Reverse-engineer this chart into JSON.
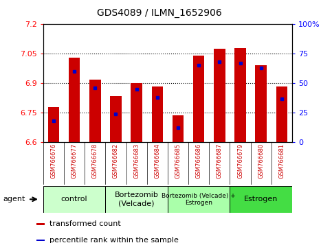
{
  "title": "GDS4089 / ILMN_1652906",
  "samples": [
    "GSM766676",
    "GSM766677",
    "GSM766678",
    "GSM766682",
    "GSM766683",
    "GSM766684",
    "GSM766685",
    "GSM766686",
    "GSM766687",
    "GSM766679",
    "GSM766680",
    "GSM766681"
  ],
  "bar_heights": [
    6.78,
    7.03,
    6.92,
    6.835,
    6.9,
    6.885,
    6.735,
    7.04,
    7.075,
    7.08,
    6.99,
    6.885
  ],
  "percentile_ranks": [
    18,
    60,
    46,
    24,
    45,
    38,
    12,
    65,
    68,
    67,
    63,
    37
  ],
  "ymin": 6.6,
  "ymax": 7.2,
  "yticks": [
    6.6,
    6.75,
    6.9,
    7.05,
    7.2
  ],
  "ytick_labels": [
    "6.6",
    "6.75",
    "6.9",
    "7.05",
    "7.2"
  ],
  "right_yticks": [
    0,
    25,
    50,
    75,
    100
  ],
  "right_ytick_labels": [
    "0",
    "25",
    "50",
    "75",
    "100%"
  ],
  "bar_color": "#cc0000",
  "percentile_color": "#0000cc",
  "group_configs": [
    {
      "start": 0,
      "end": 3,
      "label": "control",
      "color": "#ccffcc"
    },
    {
      "start": 3,
      "end": 6,
      "label": "Bortezomib\n(Velcade)",
      "color": "#ccffcc"
    },
    {
      "start": 6,
      "end": 9,
      "label": "Bortezomib (Velcade) +\nEstrogen",
      "color": "#aaffaa"
    },
    {
      "start": 9,
      "end": 12,
      "label": "Estrogen",
      "color": "#44dd44"
    }
  ],
  "legend_items": [
    {
      "label": "transformed count",
      "color": "#cc0000"
    },
    {
      "label": "percentile rank within the sample",
      "color": "#0000cc"
    }
  ],
  "xtick_color": "#cc0000",
  "xtick_bg": "#cccccc"
}
